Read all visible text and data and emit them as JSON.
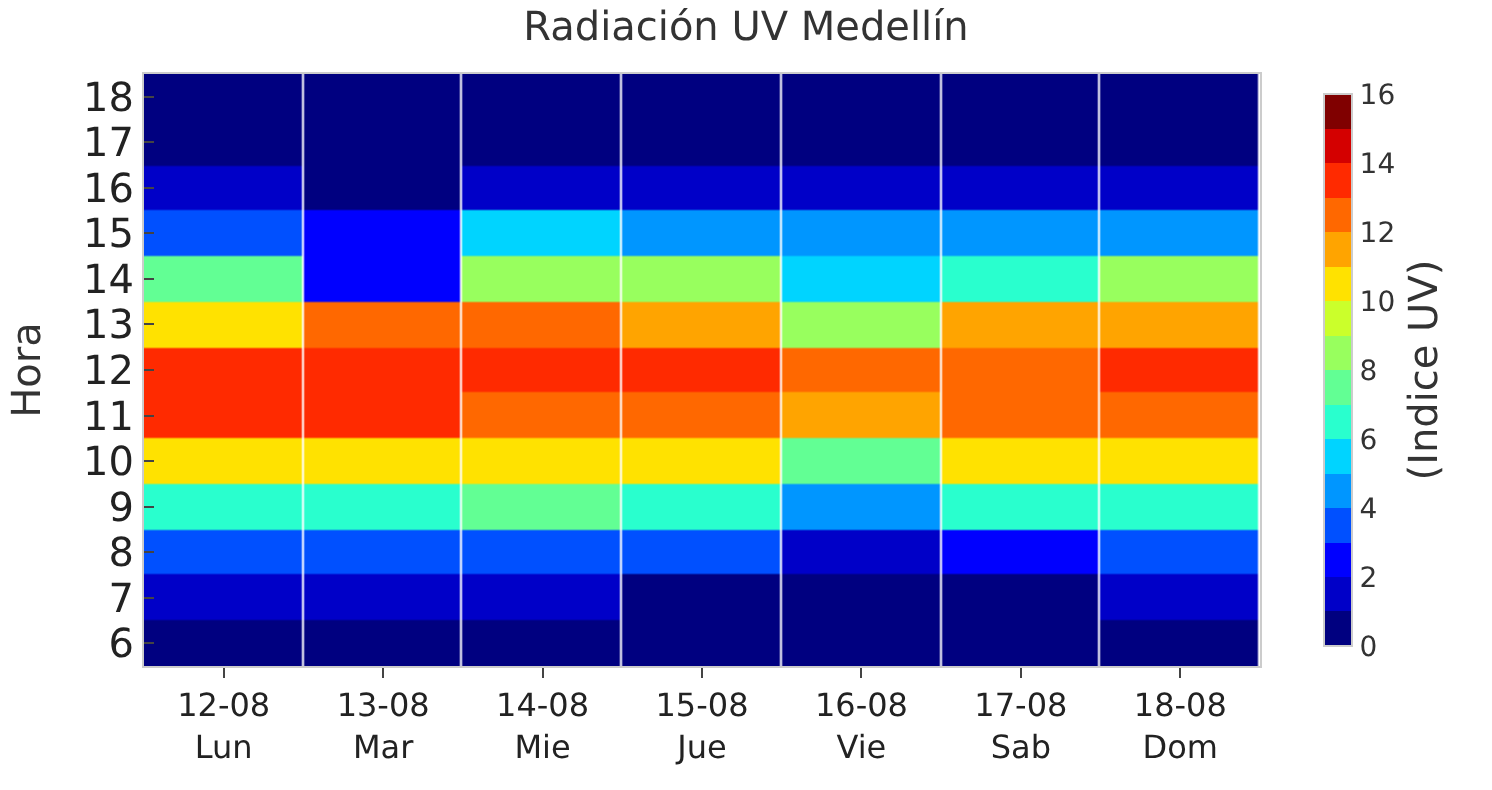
{
  "chart_data": {
    "type": "heatmap",
    "title": "Radiación UV Medellín",
    "ylabel": "Hora",
    "clabel": "(Indice UV)",
    "categories": [
      "12-08\nLun",
      "13-08\nMar",
      "14-08\nMie",
      "15-08\nJue",
      "16-08\nVie",
      "17-08\nSab",
      "18-08\nDom"
    ],
    "y_categories": [
      "18",
      "17",
      "16",
      "15",
      "14",
      "13",
      "12",
      "11",
      "10",
      "9",
      "8",
      "7",
      "6"
    ],
    "cells": [
      [
        0.5,
        0.5,
        0.5,
        0.5,
        0.5,
        0.5,
        0.5
      ],
      [
        0.5,
        0.5,
        0.5,
        0.5,
        0.5,
        0.5,
        0.5
      ],
      [
        1.5,
        0.5,
        1.5,
        1.5,
        1.5,
        1.5,
        1.5
      ],
      [
        3.5,
        2.5,
        5.5,
        4.5,
        4.5,
        4.5,
        4.5
      ],
      [
        7.5,
        2.5,
        8.5,
        8.5,
        5.5,
        6.5,
        8.5
      ],
      [
        10.5,
        12.5,
        12.5,
        11.5,
        8.5,
        11.5,
        11.5
      ],
      [
        13.5,
        13.5,
        13.5,
        13.5,
        12.5,
        12.5,
        13.5
      ],
      [
        13.5,
        13.5,
        12.5,
        12.5,
        11.5,
        12.5,
        12.5
      ],
      [
        10.5,
        10.5,
        10.5,
        10.5,
        7.5,
        10.5,
        10.5
      ],
      [
        6.5,
        6.5,
        7.5,
        6.5,
        4.5,
        6.5,
        6.5
      ],
      [
        3.5,
        3.5,
        3.5,
        3.5,
        1.5,
        2.5,
        3.5
      ],
      [
        1.5,
        1.5,
        1.5,
        0.5,
        0.5,
        0.5,
        1.5
      ],
      [
        0.5,
        0.5,
        0.5,
        0.5,
        0.5,
        0.5,
        0.5
      ]
    ],
    "clim": [
      0,
      16
    ],
    "cticks": [
      0,
      2,
      4,
      6,
      8,
      10,
      12,
      14,
      16
    ],
    "colors": [
      "#000080",
      "#0000c8",
      "#0000ff",
      "#0050ff",
      "#0096ff",
      "#00d4ff",
      "#29ffce",
      "#62ff94",
      "#98ff5e",
      "#cbff2b",
      "#ffe200",
      "#ffa400",
      "#ff6800",
      "#ff2a00",
      "#d40000",
      "#800000"
    ]
  }
}
